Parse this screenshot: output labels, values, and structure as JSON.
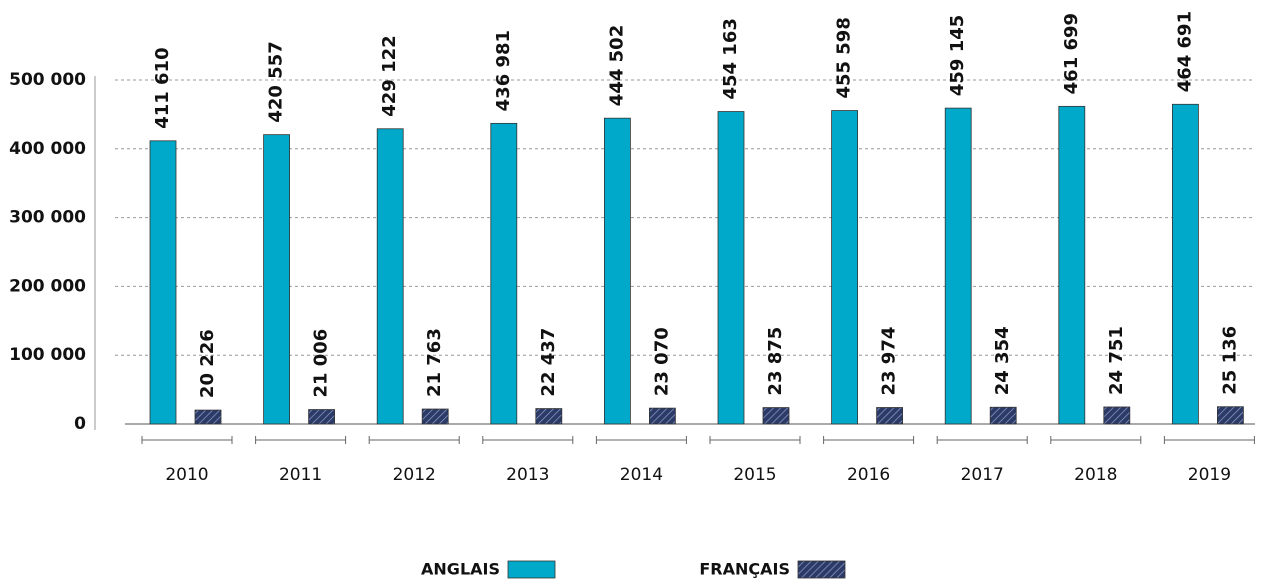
{
  "chart_data": {
    "type": "bar",
    "categories": [
      "2010",
      "2011",
      "2012",
      "2013",
      "2014",
      "2015",
      "2016",
      "2017",
      "2018",
      "2019"
    ],
    "series": [
      {
        "name": "ANGLAIS",
        "color": "#00a9c9",
        "values": [
          411610,
          420557,
          429122,
          436981,
          444502,
          454163,
          455598,
          459145,
          461699,
          464691
        ],
        "value_labels": [
          "411 610",
          "420 557",
          "429 122",
          "436 981",
          "444 502",
          "454 163",
          "455 598",
          "459 145",
          "461 699",
          "464 691"
        ]
      },
      {
        "name": "FRANÇAIS",
        "color": "#2b3a67",
        "hatch": true,
        "values": [
          20226,
          21006,
          21763,
          22437,
          23070,
          23875,
          23974,
          24354,
          24751,
          25136
        ],
        "value_labels": [
          "20 226",
          "21 006",
          "21 763",
          "22 437",
          "23 070",
          "23 875",
          "23 974",
          "24 354",
          "24 751",
          "25 136"
        ]
      }
    ],
    "ylim": [
      0,
      500000
    ],
    "yticks": [
      0,
      {
        "value": 100000,
        "label": "100 000"
      },
      {
        "value": 200000,
        "label": "200 000"
      },
      {
        "value": 300000,
        "label": "300 000"
      },
      {
        "value": 400000,
        "label": "400 000"
      },
      {
        "value": 500000,
        "label": "500 000"
      }
    ],
    "grid": true
  }
}
